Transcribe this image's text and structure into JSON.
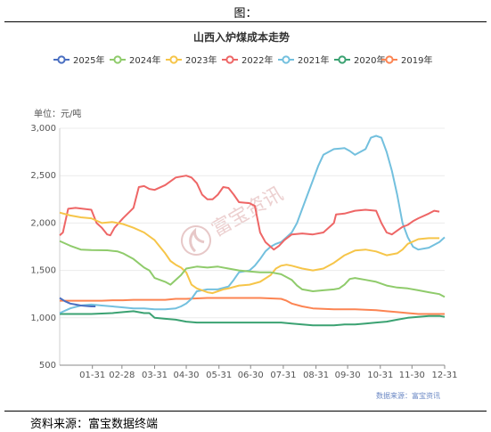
{
  "figure_label": "图：",
  "source_note": "资料来源：富宝数据终端",
  "chart_data": {
    "type": "line",
    "title": "山西入炉煤成本走势",
    "unit_label": "单位：元/吨",
    "data_source": "数据来源：富宝资讯",
    "watermark": "富宝资讯",
    "ylim": [
      500,
      3000
    ],
    "yticks": [
      "500",
      "1,000",
      "1,500",
      "2,000",
      "2,500",
      "3,000"
    ],
    "ytick_values": [
      500,
      1000,
      1500,
      2000,
      2500,
      3000
    ],
    "xlim": [
      0,
      365
    ],
    "xticks": [
      "01-31",
      "02-28",
      "03-31",
      "04-30",
      "05-31",
      "06-30",
      "07-31",
      "08-31",
      "09-30",
      "10-31",
      "11-30",
      "12-31"
    ],
    "xtick_days": [
      31,
      59,
      90,
      120,
      151,
      181,
      212,
      243,
      273,
      304,
      334,
      365
    ],
    "legend_position": "top",
    "grid": "horizontal",
    "series": [
      {
        "name": "2025年",
        "color": "#4a6fc1",
        "x": [
          0,
          5,
          10,
          15,
          20,
          25,
          30,
          34
        ],
        "y": [
          1210,
          1175,
          1150,
          1140,
          1130,
          1125,
          1120,
          1120
        ]
      },
      {
        "name": "2024年",
        "color": "#8fcb6b",
        "x": [
          0,
          10,
          20,
          30,
          45,
          55,
          60,
          70,
          80,
          85,
          90,
          100,
          105,
          110,
          115,
          120,
          130,
          140,
          150,
          160,
          170,
          180,
          190,
          200,
          210,
          220,
          225,
          230,
          235,
          240,
          250,
          260,
          265,
          270,
          275,
          280,
          290,
          300,
          310,
          320,
          330,
          340,
          350,
          360,
          365
        ],
        "y": [
          1810,
          1760,
          1720,
          1715,
          1712,
          1700,
          1680,
          1620,
          1530,
          1500,
          1420,
          1380,
          1350,
          1400,
          1450,
          1520,
          1540,
          1530,
          1540,
          1520,
          1500,
          1490,
          1480,
          1480,
          1460,
          1400,
          1340,
          1300,
          1290,
          1280,
          1290,
          1300,
          1310,
          1350,
          1410,
          1420,
          1400,
          1380,
          1340,
          1320,
          1310,
          1290,
          1270,
          1250,
          1220
        ]
      },
      {
        "name": "2023年",
        "color": "#f6c549",
        "x": [
          0,
          10,
          20,
          30,
          40,
          50,
          60,
          70,
          80,
          90,
          95,
          100,
          105,
          110,
          115,
          120,
          125,
          130,
          135,
          140,
          145,
          150,
          155,
          160,
          170,
          180,
          190,
          200,
          205,
          210,
          215,
          220,
          230,
          240,
          250,
          260,
          270,
          280,
          290,
          300,
          310,
          320,
          325,
          330,
          340,
          350,
          360
        ],
        "y": [
          2110,
          2080,
          2060,
          2050,
          2000,
          2010,
          1990,
          1950,
          1900,
          1820,
          1750,
          1680,
          1600,
          1560,
          1530,
          1480,
          1350,
          1310,
          1290,
          1270,
          1260,
          1280,
          1300,
          1310,
          1340,
          1350,
          1380,
          1450,
          1520,
          1550,
          1560,
          1550,
          1520,
          1500,
          1520,
          1580,
          1660,
          1710,
          1720,
          1700,
          1660,
          1680,
          1720,
          1780,
          1830,
          1840,
          1840
        ]
      },
      {
        "name": "2022年",
        "color": "#ee6666",
        "x": [
          0,
          3,
          8,
          15,
          22,
          30,
          35,
          40,
          45,
          48,
          52,
          60,
          70,
          75,
          80,
          85,
          90,
          100,
          110,
          120,
          125,
          130,
          135,
          140,
          145,
          150,
          155,
          160,
          165,
          170,
          180,
          185,
          190,
          195,
          200,
          203,
          208,
          213,
          220,
          230,
          240,
          250,
          260,
          262,
          270,
          280,
          290,
          300,
          305,
          310,
          315,
          320,
          325,
          330,
          335,
          340,
          350,
          355,
          360
        ],
        "y": [
          1870,
          1900,
          2150,
          2160,
          2150,
          2140,
          2000,
          1950,
          1880,
          1870,
          1950,
          2050,
          2160,
          2380,
          2390,
          2360,
          2350,
          2400,
          2480,
          2500,
          2480,
          2420,
          2300,
          2250,
          2250,
          2300,
          2380,
          2370,
          2300,
          2220,
          2210,
          2180,
          1900,
          1800,
          1750,
          1720,
          1760,
          1820,
          1880,
          1890,
          1880,
          1900,
          2000,
          2090,
          2100,
          2130,
          2140,
          2130,
          2000,
          1900,
          1880,
          1920,
          1960,
          1980,
          2020,
          2050,
          2100,
          2130,
          2120
        ]
      },
      {
        "name": "2021年",
        "color": "#73c0de",
        "x": [
          0,
          10,
          20,
          30,
          40,
          50,
          60,
          70,
          80,
          90,
          100,
          110,
          115,
          120,
          125,
          130,
          140,
          150,
          160,
          165,
          170,
          180,
          185,
          190,
          195,
          200,
          205,
          210,
          215,
          220,
          225,
          230,
          235,
          240,
          245,
          250,
          260,
          270,
          275,
          280,
          290,
          295,
          300,
          305,
          310,
          315,
          320,
          325,
          330,
          335,
          340,
          350,
          360,
          365
        ],
        "y": [
          1050,
          1100,
          1130,
          1140,
          1130,
          1120,
          1110,
          1100,
          1100,
          1090,
          1090,
          1100,
          1120,
          1150,
          1200,
          1280,
          1300,
          1300,
          1330,
          1400,
          1480,
          1500,
          1550,
          1620,
          1700,
          1750,
          1780,
          1800,
          1850,
          1900,
          2000,
          2150,
          2300,
          2450,
          2600,
          2720,
          2780,
          2790,
          2760,
          2720,
          2780,
          2900,
          2920,
          2900,
          2750,
          2550,
          2300,
          2000,
          1850,
          1750,
          1720,
          1740,
          1800,
          1850
        ]
      },
      {
        "name": "2020年",
        "color": "#3ba272",
        "x": [
          0,
          10,
          20,
          30,
          40,
          50,
          60,
          70,
          80,
          85,
          90,
          100,
          110,
          120,
          130,
          140,
          150,
          160,
          170,
          180,
          190,
          200,
          210,
          220,
          230,
          240,
          250,
          260,
          270,
          280,
          290,
          300,
          310,
          320,
          330,
          340,
          350,
          360,
          365
        ],
        "y": [
          1040,
          1040,
          1040,
          1040,
          1045,
          1050,
          1060,
          1070,
          1050,
          1050,
          1000,
          990,
          980,
          960,
          950,
          950,
          950,
          950,
          950,
          950,
          950,
          950,
          950,
          940,
          930,
          920,
          920,
          920,
          930,
          930,
          940,
          950,
          960,
          980,
          1000,
          1010,
          1020,
          1020,
          1010
        ]
      },
      {
        "name": "2019年",
        "color": "#fc8452",
        "x": [
          0,
          10,
          20,
          30,
          40,
          50,
          60,
          70,
          80,
          90,
          100,
          110,
          120,
          130,
          140,
          150,
          160,
          170,
          180,
          190,
          200,
          210,
          215,
          220,
          230,
          240,
          250,
          260,
          270,
          280,
          290,
          300,
          310,
          320,
          330,
          340,
          350,
          360,
          365
        ],
        "y": [
          1180,
          1180,
          1180,
          1180,
          1180,
          1185,
          1185,
          1190,
          1190,
          1190,
          1190,
          1200,
          1200,
          1205,
          1210,
          1210,
          1210,
          1210,
          1210,
          1210,
          1205,
          1200,
          1180,
          1150,
          1120,
          1100,
          1095,
          1090,
          1090,
          1090,
          1085,
          1080,
          1070,
          1060,
          1050,
          1040,
          1040,
          1040,
          1040
        ]
      }
    ]
  }
}
